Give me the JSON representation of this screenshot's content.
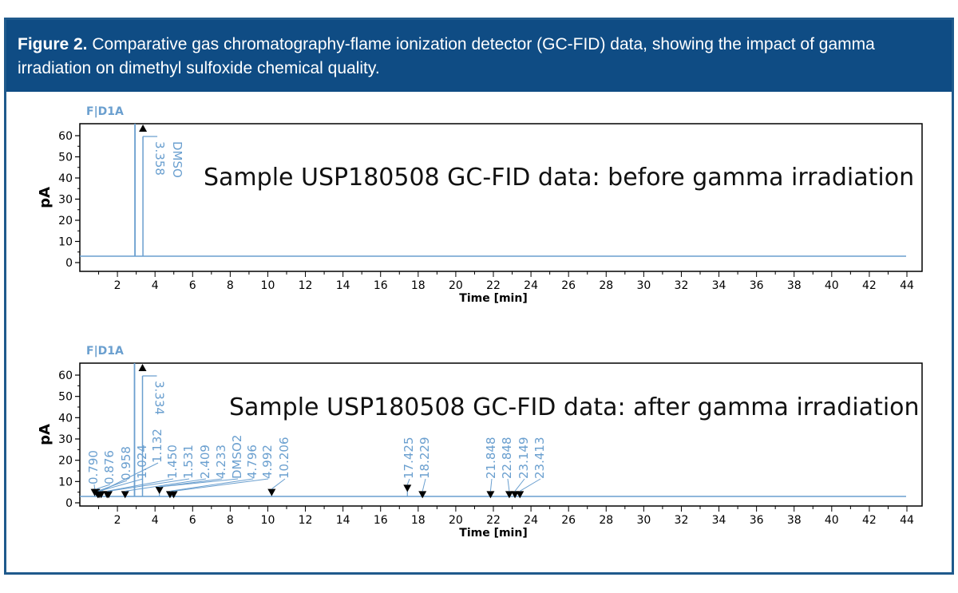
{
  "figure": {
    "label": "Figure 2.",
    "caption": "Comparative gas chromatography-flame ionization detector (GC-FID) data, showing the impact of gamma irradiation on dimethyl sulfoxide chemical quality."
  },
  "colors": {
    "trace": "#6a9fcf",
    "header": "#0f4c84",
    "border": "#1f5a8c"
  },
  "chart_data": [
    {
      "type": "line",
      "signal": "F|D1A",
      "overlay_text": "Sample USP180508 GC-FID data: before gamma irradiation",
      "xlabel": "Time [min]",
      "ylabel": "pA",
      "xlim": [
        0,
        44
      ],
      "ylim": [
        0,
        65
      ],
      "xticks": [
        2,
        4,
        6,
        8,
        10,
        12,
        14,
        16,
        18,
        20,
        22,
        24,
        26,
        28,
        30,
        32,
        34,
        36,
        38,
        40,
        42,
        44
      ],
      "yticks": [
        0,
        10,
        20,
        30,
        40,
        50,
        60
      ],
      "baseline": 3,
      "peaks": [
        {
          "rt": 3.358,
          "labels": [
            "3.358",
            "DMSO"
          ],
          "height": 65,
          "marker": "up"
        }
      ]
    },
    {
      "type": "line",
      "signal": "F|D1A",
      "overlay_text": "Sample USP180508 GC-FID data: after gamma irradiation",
      "xlabel": "Time [min]",
      "ylabel": "pA",
      "xlim": [
        0,
        44
      ],
      "ylim": [
        0,
        65
      ],
      "xticks": [
        2,
        4,
        6,
        8,
        10,
        12,
        14,
        16,
        18,
        20,
        22,
        24,
        26,
        28,
        30,
        32,
        34,
        36,
        38,
        40,
        42,
        44
      ],
      "yticks": [
        0,
        10,
        20,
        30,
        40,
        50,
        60
      ],
      "baseline": 3,
      "peaks": [
        {
          "rt": 0.79,
          "labels": [
            "0.790"
          ],
          "height": 5
        },
        {
          "rt": 0.876,
          "labels": [
            "0.876"
          ],
          "height": 5
        },
        {
          "rt": 0.958,
          "labels": [
            "0.958"
          ],
          "height": 4
        },
        {
          "rt": 1.024,
          "labels": [
            "1.024"
          ],
          "height": 4
        },
        {
          "rt": 3.334,
          "labels": [
            "3.334"
          ],
          "height": 65,
          "marker": "up"
        },
        {
          "rt": 1.132,
          "labels": [
            "1.132"
          ],
          "height": 4
        },
        {
          "rt": 1.45,
          "labels": [
            "1.450"
          ],
          "height": 4
        },
        {
          "rt": 1.531,
          "labels": [
            "1.531"
          ],
          "height": 4
        },
        {
          "rt": 2.409,
          "labels": [
            "2.409"
          ],
          "height": 4
        },
        {
          "rt": 4.233,
          "labels": [
            "4.233",
            "DMSO2"
          ],
          "height": 6
        },
        {
          "rt": 4.796,
          "labels": [
            "4.796"
          ],
          "height": 4
        },
        {
          "rt": 4.992,
          "labels": [
            "4.992"
          ],
          "height": 4
        },
        {
          "rt": 10.206,
          "labels": [
            "10.206"
          ],
          "height": 5
        },
        {
          "rt": 17.425,
          "labels": [
            "17.425"
          ],
          "height": 7
        },
        {
          "rt": 18.229,
          "labels": [
            "18.229"
          ],
          "height": 4
        },
        {
          "rt": 21.848,
          "labels": [
            "21.848"
          ],
          "height": 4
        },
        {
          "rt": 22.848,
          "labels": [
            "22.848"
          ],
          "height": 4
        },
        {
          "rt": 23.149,
          "labels": [
            "23.149"
          ],
          "height": 4
        },
        {
          "rt": 23.413,
          "labels": [
            "23.413"
          ],
          "height": 4
        }
      ]
    }
  ]
}
